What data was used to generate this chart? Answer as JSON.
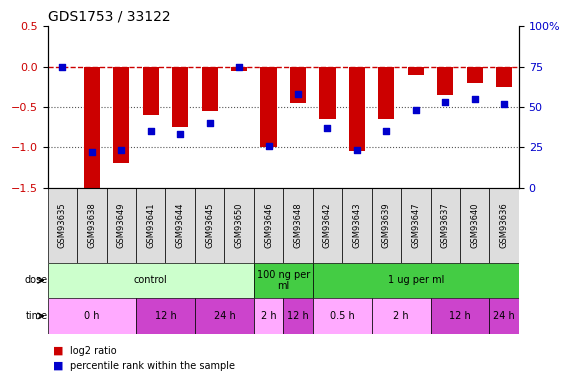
{
  "title": "GDS1753 / 33122",
  "samples": [
    "GSM93635",
    "GSM93638",
    "GSM93649",
    "GSM93641",
    "GSM93644",
    "GSM93645",
    "GSM93650",
    "GSM93646",
    "GSM93648",
    "GSM93642",
    "GSM93643",
    "GSM93639",
    "GSM93647",
    "GSM93637",
    "GSM93640",
    "GSM93636"
  ],
  "log2_ratio": [
    0.0,
    -1.5,
    -1.2,
    -0.6,
    -0.75,
    -0.55,
    -0.05,
    -1.0,
    -0.45,
    -0.65,
    -1.05,
    -0.65,
    -0.1,
    -0.35,
    -0.2,
    -0.25
  ],
  "pct_rank": [
    75,
    22,
    23,
    35,
    33,
    40,
    75,
    26,
    58,
    37,
    23,
    35,
    48,
    53,
    55,
    52
  ],
  "ylim_left": [
    -1.5,
    0.5
  ],
  "ylim_right": [
    0,
    100
  ],
  "yticks_left": [
    0.5,
    0,
    -0.5,
    -1.0,
    -1.5
  ],
  "yticks_right": [
    100,
    75,
    50,
    25,
    0
  ],
  "dose_groups": [
    {
      "label": "control",
      "start": 0,
      "end": 7,
      "color": "#ccffcc"
    },
    {
      "label": "100 ng per\nml",
      "start": 7,
      "end": 9,
      "color": "#44cc44"
    },
    {
      "label": "1 ug per ml",
      "start": 9,
      "end": 16,
      "color": "#44cc44"
    }
  ],
  "time_groups": [
    {
      "label": "0 h",
      "start": 0,
      "end": 3,
      "color": "#ffaaff"
    },
    {
      "label": "12 h",
      "start": 3,
      "end": 5,
      "color": "#cc44cc"
    },
    {
      "label": "24 h",
      "start": 5,
      "end": 7,
      "color": "#cc44cc"
    },
    {
      "label": "2 h",
      "start": 7,
      "end": 8,
      "color": "#ffaaff"
    },
    {
      "label": "12 h",
      "start": 8,
      "end": 9,
      "color": "#cc44cc"
    },
    {
      "label": "0.5 h",
      "start": 9,
      "end": 11,
      "color": "#ffaaff"
    },
    {
      "label": "2 h",
      "start": 11,
      "end": 13,
      "color": "#ffaaff"
    },
    {
      "label": "12 h",
      "start": 13,
      "end": 15,
      "color": "#cc44cc"
    },
    {
      "label": "24 h",
      "start": 15,
      "end": 16,
      "color": "#cc44cc"
    }
  ],
  "bar_color": "#cc0000",
  "dot_color": "#0000cc",
  "hline_color": "#cc0000",
  "hline_style": "--",
  "dotline_color": "#555555",
  "bg_color": "#ffffff",
  "tick_label_color_left": "#cc0000",
  "tick_label_color_right": "#0000cc",
  "label_fontsize": 8,
  "title_fontsize": 10,
  "bar_width": 0.55,
  "xtick_gray": "#cccccc",
  "sample_box_color": "#dddddd"
}
